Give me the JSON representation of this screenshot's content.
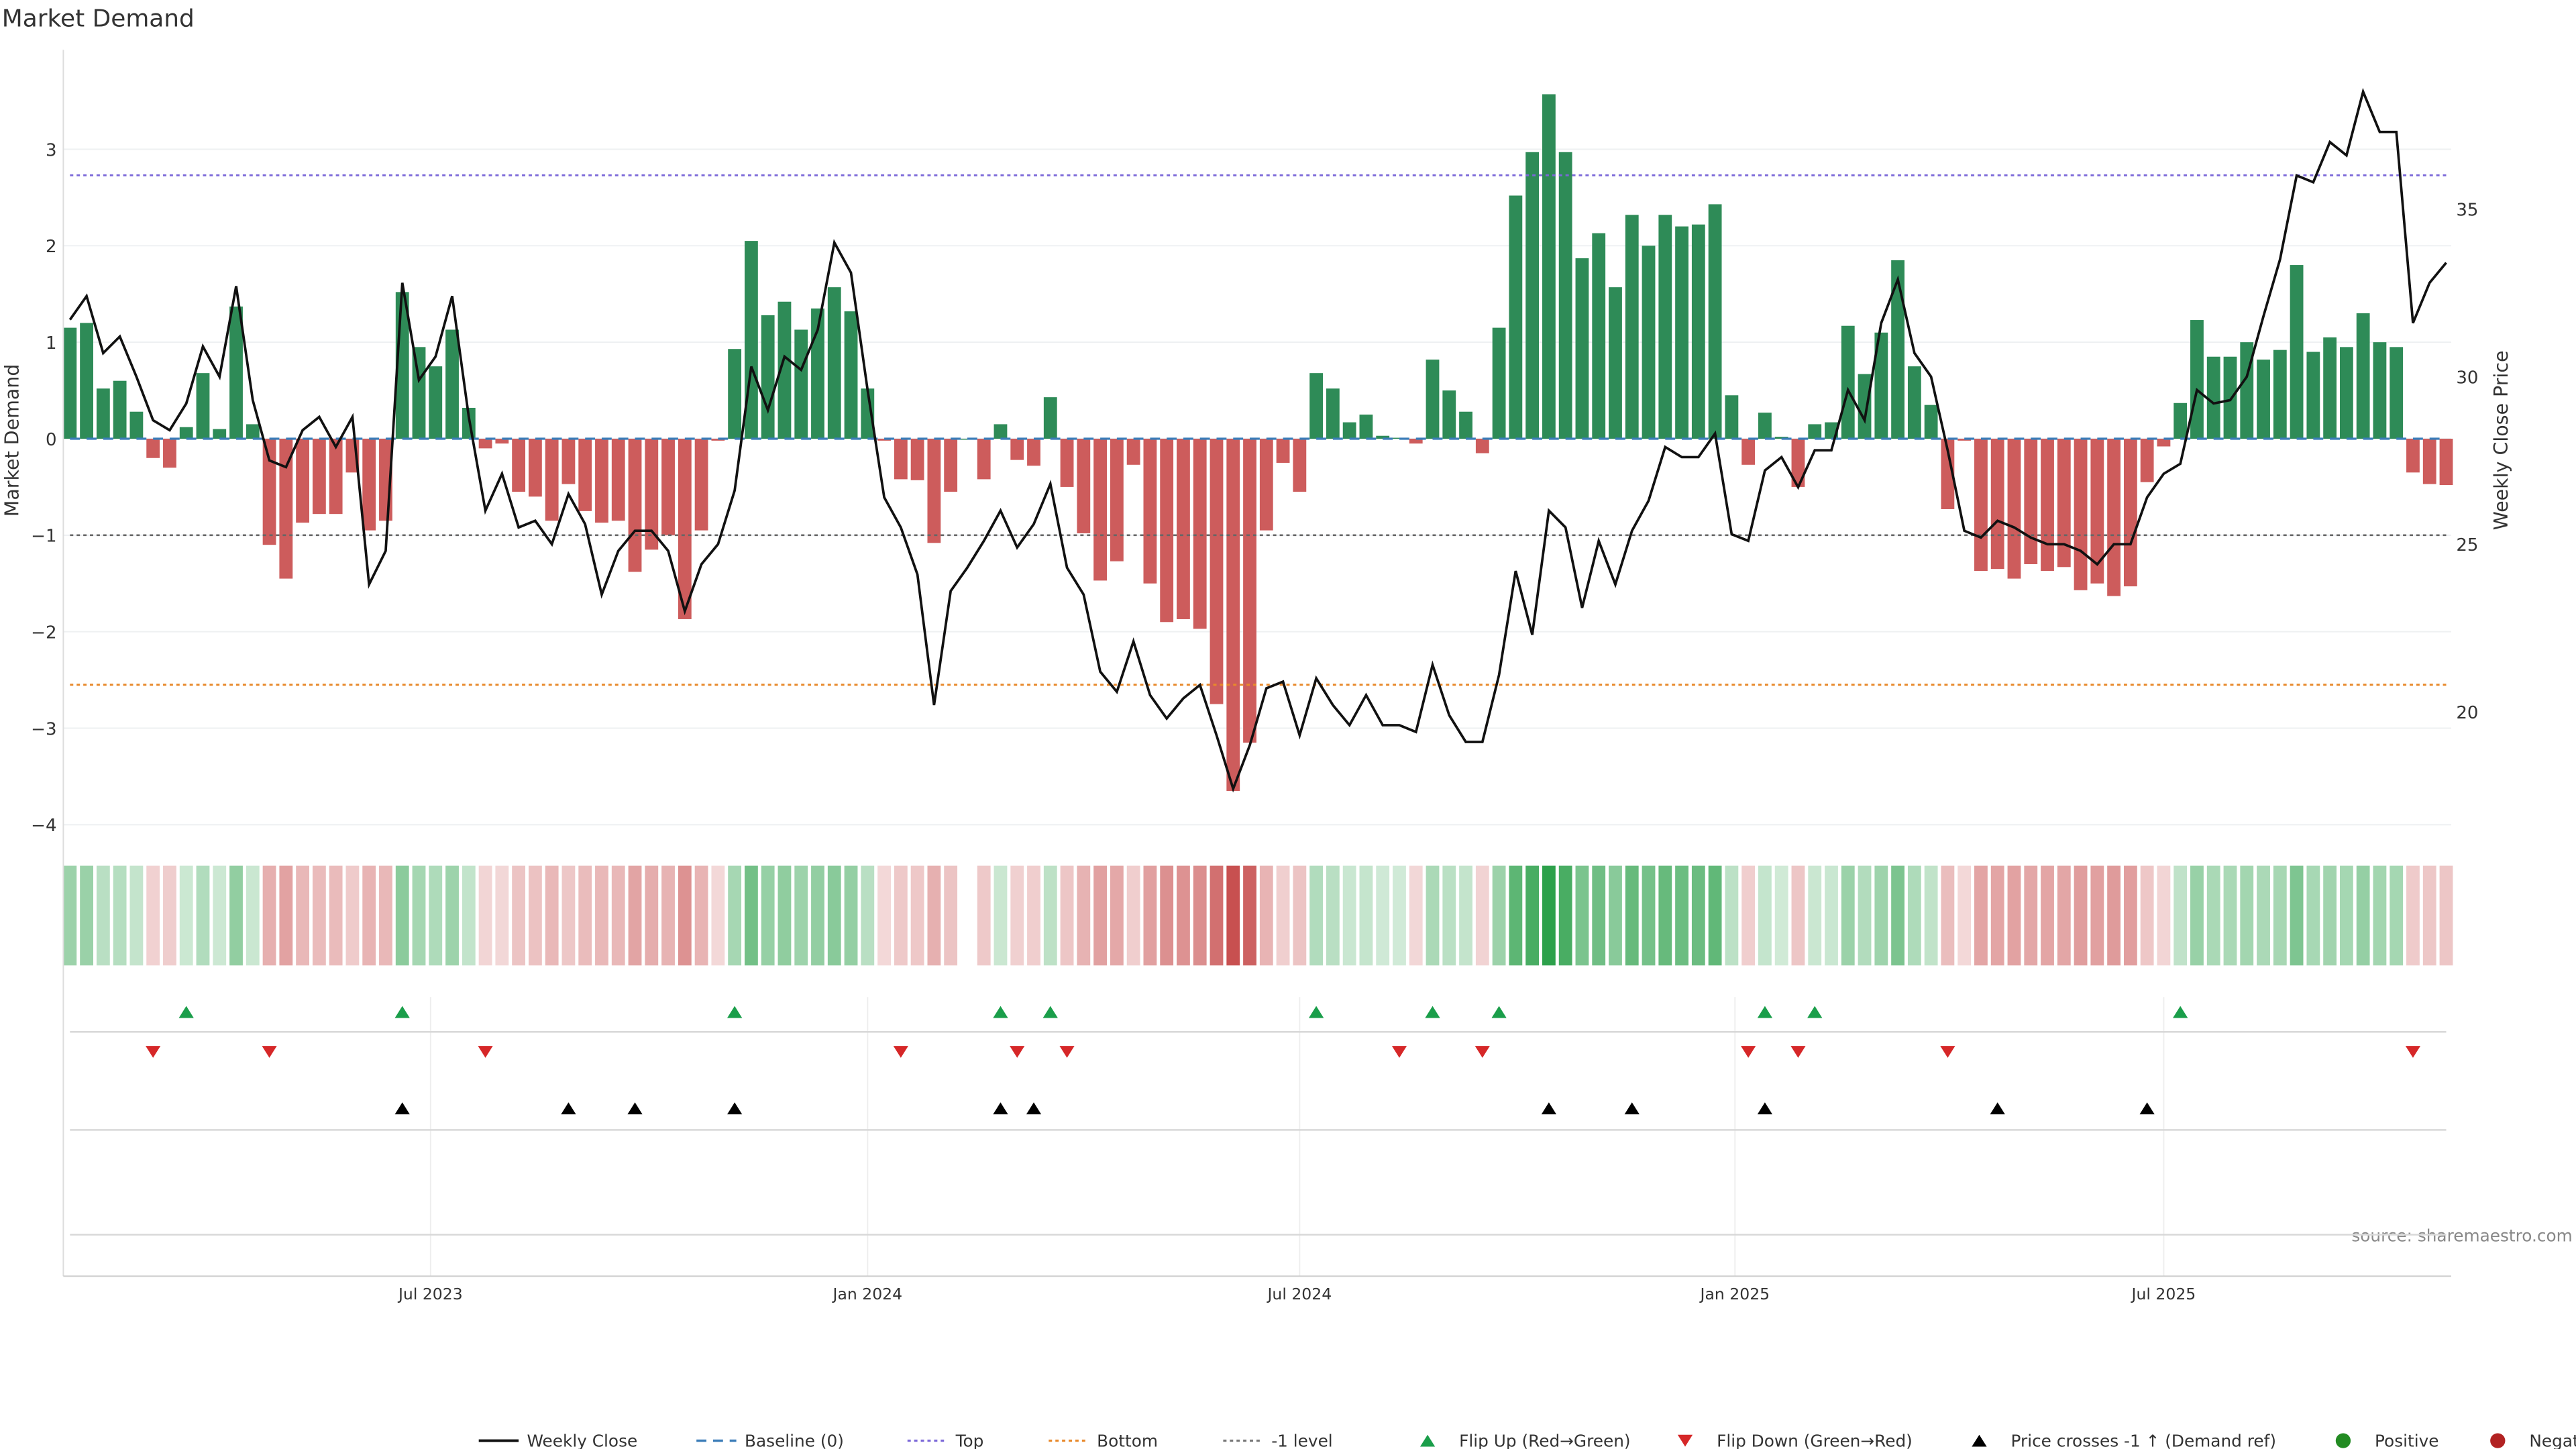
{
  "chart_data": {
    "type": "bar",
    "title": "Market Demand",
    "ylabel": "Market Demand",
    "y2label": "Weekly Close Price",
    "ylim": [
      -4.15,
      4.03
    ],
    "y2lim": [
      16.2,
      39.75
    ],
    "yticks": [
      3,
      2,
      1,
      0,
      -1,
      -2,
      -3,
      -4
    ],
    "ytick_labels": [
      "3",
      "2",
      "1",
      "0",
      "−1",
      "−2",
      "−3",
      "−4"
    ],
    "y2ticks": [
      20,
      25,
      30,
      35
    ],
    "xticks": [
      {
        "label": "Jul 2023",
        "week": 21.7
      },
      {
        "label": "Jan 2024",
        "week": 48
      },
      {
        "label": "Jul 2024",
        "week": 74
      },
      {
        "label": "Jan 2025",
        "week": 100.2
      },
      {
        "label": "Jul 2025",
        "week": 126
      }
    ],
    "levels": {
      "baseline": 0,
      "top": 2.73,
      "bottom": -2.55,
      "minus_one": -1
    },
    "demand": [
      1.15,
      1.2,
      0.52,
      0.6,
      0.28,
      -0.2,
      -0.3,
      0.12,
      0.68,
      0.1,
      1.37,
      0.15,
      -1.1,
      -1.45,
      -0.87,
      -0.78,
      -0.78,
      -0.35,
      -0.95,
      -0.85,
      1.52,
      0.95,
      0.75,
      1.13,
      0.32,
      -0.1,
      -0.05,
      -0.55,
      -0.6,
      -0.85,
      -0.47,
      -0.75,
      -0.87,
      -0.85,
      -1.38,
      -1.15,
      -1.0,
      -1.87,
      -0.95,
      -0.02,
      0.93,
      2.05,
      1.28,
      1.42,
      1.13,
      1.35,
      1.57,
      1.32,
      0.52,
      -0.02,
      -0.42,
      -0.43,
      -1.08,
      -0.55,
      0,
      -0.42,
      0.15,
      -0.22,
      -0.28,
      0.43,
      -0.5,
      -0.98,
      -1.47,
      -1.27,
      -0.27,
      -1.5,
      -1.9,
      -1.87,
      -1.97,
      -2.75,
      -3.65,
      -3.15,
      -0.95,
      -0.25,
      -0.55,
      0.68,
      0.52,
      0.17,
      0.25,
      0.03,
      0.01,
      -0.05,
      0.82,
      0.5,
      0.28,
      -0.15,
      1.15,
      2.52,
      2.97,
      3.57,
      2.97,
      1.87,
      2.13,
      1.57,
      2.32,
      2.0,
      2.32,
      2.2,
      2.22,
      2.43,
      0.45,
      -0.27,
      0.27,
      0.02,
      -0.5,
      0.15,
      0.17,
      1.17,
      0.67,
      1.1,
      1.85,
      0.75,
      0.35,
      -0.73,
      -0.02,
      -1.37,
      -1.35,
      -1.45,
      -1.3,
      -1.37,
      -1.33,
      -1.57,
      -1.5,
      -1.63,
      -1.53,
      -0.45,
      -0.08,
      0.37,
      1.23,
      0.85,
      0.85,
      1.0,
      0.82,
      0.92,
      1.8,
      0.9,
      1.05,
      0.95,
      1.3,
      1.0,
      0.95,
      -0.35,
      -0.47,
      -0.48
    ],
    "weekly_close": [
      31.7,
      32.4,
      30.7,
      31.2,
      30.0,
      28.7,
      28.4,
      29.2,
      30.9,
      30.0,
      32.7,
      29.3,
      27.5,
      27.3,
      28.4,
      28.8,
      27.9,
      28.8,
      23.8,
      24.8,
      32.8,
      29.9,
      30.6,
      32.4,
      28.8,
      26.0,
      27.1,
      25.5,
      25.7,
      25.0,
      26.5,
      25.6,
      23.5,
      24.8,
      25.4,
      25.4,
      24.8,
      23.0,
      24.4,
      25.0,
      26.6,
      30.3,
      29.0,
      30.6,
      30.2,
      31.4,
      34.0,
      33.1,
      29.6,
      26.4,
      25.5,
      24.1,
      20.2,
      23.6,
      24.3,
      25.1,
      26.0,
      24.9,
      25.6,
      26.8,
      24.3,
      23.5,
      21.2,
      20.6,
      22.1,
      20.5,
      19.8,
      20.4,
      20.8,
      19.3,
      17.7,
      19.0,
      20.7,
      20.9,
      19.3,
      21.0,
      20.2,
      19.6,
      20.5,
      19.6,
      19.6,
      19.4,
      21.4,
      19.9,
      19.1,
      19.1,
      21.1,
      24.2,
      22.3,
      26.0,
      25.5,
      23.1,
      25.1,
      23.8,
      25.4,
      26.3,
      27.9,
      27.6,
      27.6,
      28.3,
      25.3,
      25.1,
      27.2,
      27.6,
      26.7,
      27.8,
      27.8,
      29.6,
      28.7,
      31.6,
      32.9,
      30.7,
      30.0,
      27.8,
      25.4,
      25.2,
      25.7,
      25.5,
      25.2,
      25.0,
      25.0,
      24.8,
      24.4,
      25.0,
      25.0,
      26.4,
      27.1,
      27.4,
      29.6,
      29.2,
      29.3,
      30.0,
      31.8,
      33.5,
      36.0,
      35.8,
      37.0,
      36.6,
      38.5,
      37.3,
      37.3,
      31.6,
      32.8,
      33.4
    ],
    "flip_up_weeks": [
      7,
      20,
      40,
      56,
      59,
      75,
      82,
      86,
      102,
      105,
      127
    ],
    "flip_down_weeks": [
      5,
      12,
      25,
      50,
      57,
      60,
      80,
      85,
      101,
      104,
      113,
      141
    ],
    "price_cross_weeks": [
      20,
      30,
      34,
      40,
      56,
      58,
      89,
      94,
      102,
      116,
      125
    ],
    "legend": [
      {
        "label": "Weekly Close",
        "kind": "line",
        "color": "#111111"
      },
      {
        "label": "Baseline (0)",
        "kind": "dash",
        "color": "#3a7cb8"
      },
      {
        "label": "Top",
        "kind": "dot",
        "color": "#7b68d8"
      },
      {
        "label": "Bottom",
        "kind": "dot",
        "color": "#e8892b"
      },
      {
        "label": "-1 level",
        "kind": "dot",
        "color": "#777777"
      },
      {
        "label": "Flip Up (Red→Green)",
        "kind": "tri-up",
        "color": "#1a9e4a"
      },
      {
        "label": "Flip Down (Green→Red)",
        "kind": "tri-down",
        "color": "#d62728"
      },
      {
        "label": "Price crosses -1 ↑ (Demand ref)",
        "kind": "tri-up",
        "color": "#000000"
      },
      {
        "label": "Positive",
        "kind": "circle",
        "color": "#228b22"
      },
      {
        "label": "Negative",
        "kind": "circle",
        "color": "#b22222"
      }
    ],
    "colors": {
      "positive": "#2e8b57",
      "negative": "#cd5c5c"
    }
  },
  "source": "source: sharemaestro.com"
}
